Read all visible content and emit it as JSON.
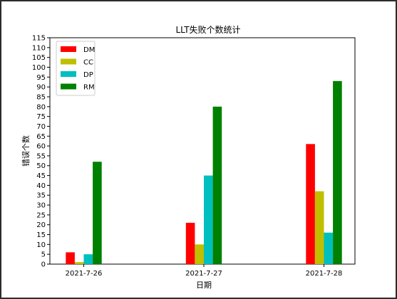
{
  "chart_data": {
    "type": "bar",
    "title": "LLT失败个数统计",
    "xlabel": "日期",
    "ylabel": "错误个数",
    "categories": [
      "2021-7-26",
      "2021-7-27",
      "2021-7-28"
    ],
    "ylim": [
      0,
      115
    ],
    "ytick_step": 5,
    "grid": false,
    "legend_position": "top-left",
    "series": [
      {
        "name": "DM",
        "color": "#ff0000",
        "values": [
          6,
          21,
          61
        ]
      },
      {
        "name": "CC",
        "color": "#bfbf00",
        "values": [
          1,
          10,
          37
        ]
      },
      {
        "name": "DP",
        "color": "#00bfbf",
        "values": [
          5,
          45,
          16
        ]
      },
      {
        "name": "RM",
        "color": "#008000",
        "values": [
          52,
          80,
          93
        ]
      }
    ]
  }
}
